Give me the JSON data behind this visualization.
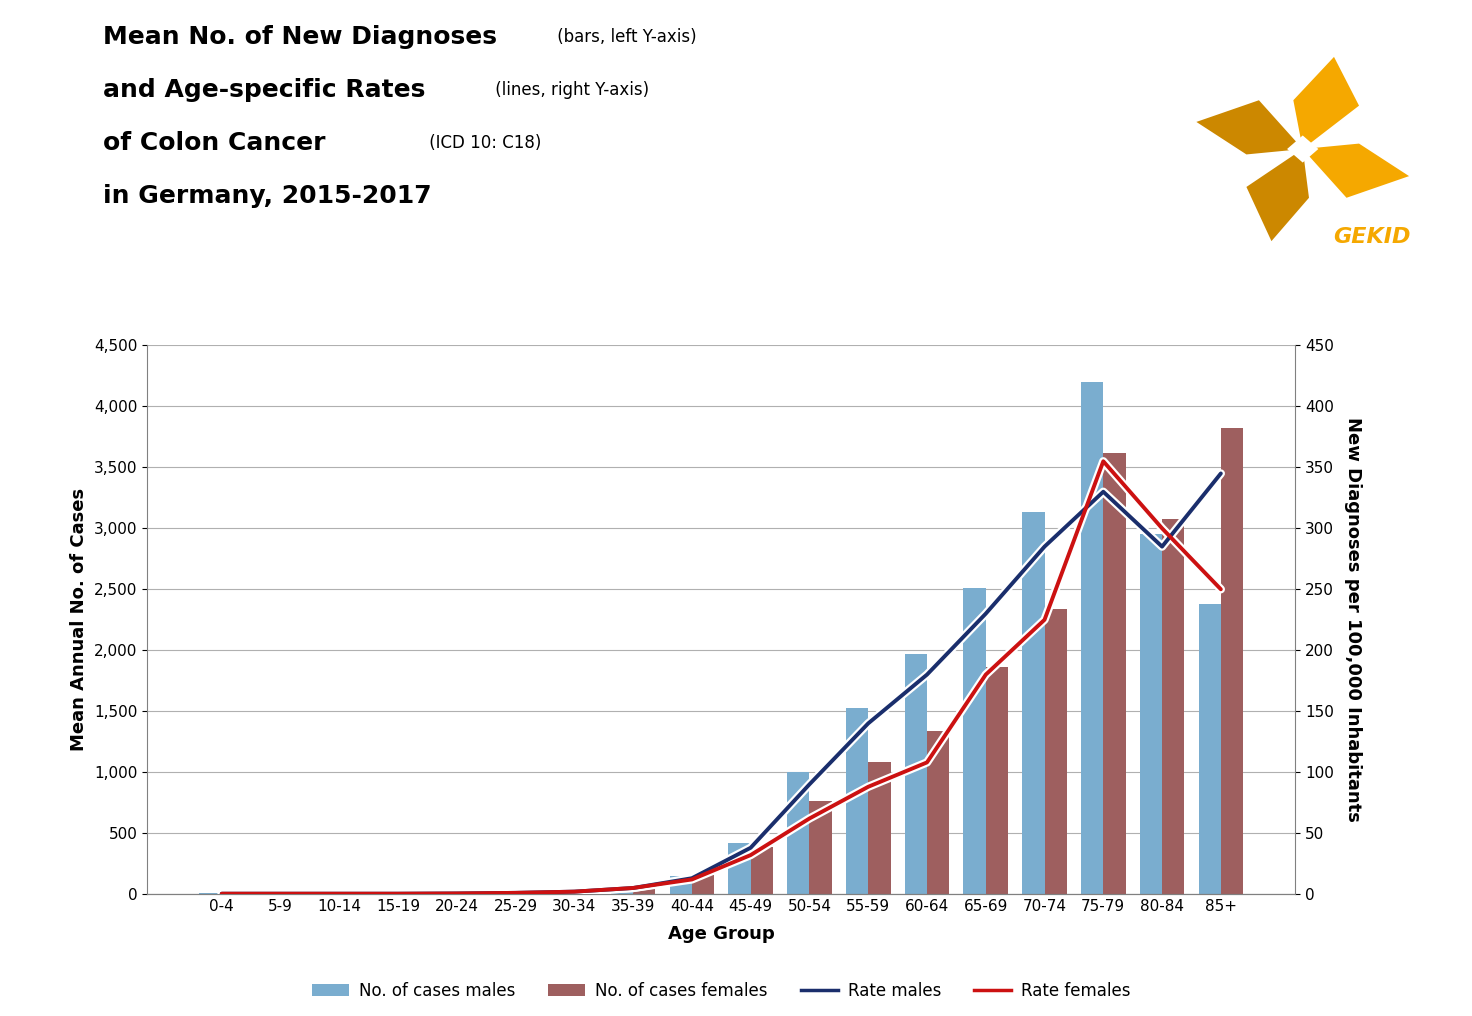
{
  "age_groups": [
    "0-4",
    "5-9",
    "10-14",
    "15-19",
    "20-24",
    "25-29",
    "30-34",
    "35-39",
    "40-44",
    "45-49",
    "50-54",
    "55-59",
    "60-64",
    "65-69",
    "70-74",
    "75-79",
    "80-84",
    "85+"
  ],
  "cases_males": [
    5,
    5,
    5,
    8,
    10,
    15,
    30,
    60,
    150,
    420,
    1000,
    1530,
    1970,
    2510,
    3130,
    4200,
    2950,
    2380
  ],
  "cases_females": [
    5,
    5,
    5,
    8,
    10,
    20,
    35,
    70,
    160,
    390,
    760,
    1080,
    1340,
    1860,
    2340,
    3620,
    3080,
    3820
  ],
  "rate_males": [
    0.3,
    0.3,
    0.3,
    0.3,
    0.5,
    1.0,
    2.0,
    5.0,
    13,
    38,
    90,
    140,
    180,
    230,
    285,
    330,
    285,
    345
  ],
  "rate_females": [
    0.3,
    0.3,
    0.3,
    0.3,
    0.5,
    1.0,
    2.0,
    5.0,
    12,
    32,
    62,
    88,
    108,
    180,
    225,
    355,
    300,
    250
  ],
  "bar_color_males": "#7aadcf",
  "bar_color_females": "#9e5f5f",
  "line_color_males": "#1a2e6c",
  "line_color_females": "#cc1111",
  "ylim_left": [
    0,
    4500
  ],
  "ylim_right": [
    0,
    450
  ],
  "yticks_left": [
    0,
    500,
    1000,
    1500,
    2000,
    2500,
    3000,
    3500,
    4000,
    4500
  ],
  "yticks_right": [
    0,
    50,
    100,
    150,
    200,
    250,
    300,
    350,
    400,
    450
  ],
  "ylabel_left": "Mean Annual No. of Cases",
  "ylabel_right": "New Diagnoses per 100,000 Inhabitants",
  "xlabel": "Age Group",
  "title_line1_bold": "Mean No. of New Diagnoses",
  "title_line1_small": " (bars, left Y-axis)",
  "title_line2_bold": "and Age-specific Rates",
  "title_line2_small": " (lines, right Y-axis)",
  "title_line3_bold": "of Colon Cancer",
  "title_line3_small": " (ICD 10: C18)",
  "title_line4": "in Germany, 2015-2017",
  "legend_labels": [
    "No. of cases males",
    "No. of cases females",
    "Rate males",
    "Rate females"
  ],
  "background_color": "#ffffff",
  "grid_color": "#b0b0b0",
  "logo_color_bright": "#F5A800",
  "logo_color_dark": "#CC8800",
  "logo_text": "GEKID",
  "logo_text_color": "#F5A800"
}
